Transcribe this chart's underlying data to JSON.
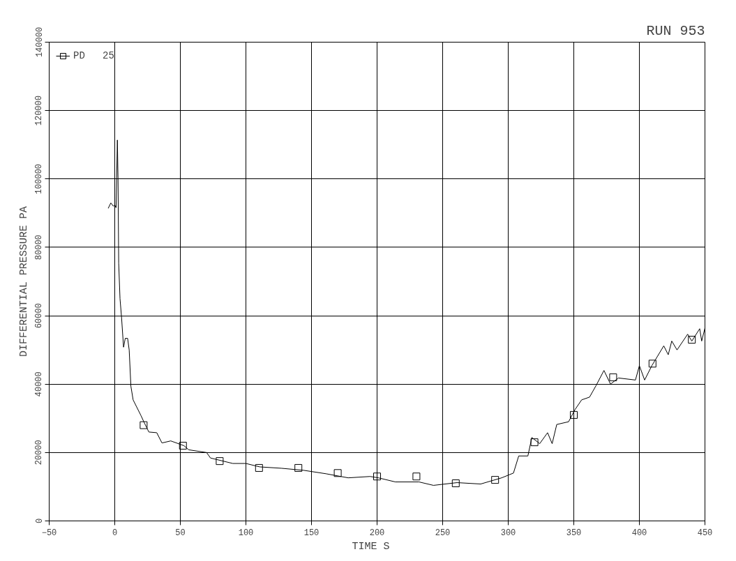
{
  "chart_data": {
    "type": "line",
    "title": "RUN 953",
    "xlabel": "TIME   S",
    "ylabel": "DIFFERENTIAL PRESSURE PA",
    "xlim": [
      -50,
      450
    ],
    "xticks": [
      -50,
      0,
      50,
      100,
      150,
      200,
      250,
      300,
      350,
      400,
      450
    ],
    "ylim": [
      0,
      140000
    ],
    "yticks": [
      0,
      20000,
      40000,
      60000,
      80000,
      100000,
      120000,
      140000
    ],
    "grid": true,
    "legend": "top left",
    "series": [
      {
        "name": "PD   25",
        "color": "#000000",
        "marker": "none",
        "x": [
          -5,
          -3,
          -1,
          0,
          1,
          2,
          2.5,
          3,
          4,
          5.2,
          6.7,
          8,
          9.8,
          11,
          12.3,
          14,
          20,
          22.4,
          26,
          32,
          36,
          42.7,
          52.8,
          56.4,
          70,
          73,
          90,
          100,
          110.6,
          127,
          144,
          161,
          178,
          194.7,
          201,
          214,
          232,
          243,
          261,
          279,
          295,
          304,
          308,
          315,
          318,
          324,
          330,
          333.5,
          337,
          346,
          351,
          356,
          362,
          367,
          373,
          378,
          384,
          397,
          400,
          404,
          409.5,
          418.6,
          422,
          424.7,
          428.7,
          436.8,
          440,
          446,
          447.5,
          450
        ],
        "values": [
          91400,
          93000,
          92000,
          92400,
          91600,
          111400,
          100000,
          75400,
          65000,
          59400,
          50800,
          53400,
          53400,
          50000,
          39400,
          35400,
          30800,
          28800,
          26000,
          25800,
          22800,
          23400,
          22000,
          20800,
          20000,
          18400,
          16800,
          16800,
          15800,
          15400,
          14800,
          13800,
          12600,
          13000,
          12600,
          11400,
          11400,
          10400,
          11200,
          10800,
          12600,
          14000,
          19000,
          19000,
          24400,
          22600,
          25800,
          22600,
          28200,
          29000,
          32600,
          35400,
          36200,
          39600,
          44000,
          40000,
          41800,
          41200,
          45400,
          41200,
          45400,
          51200,
          48600,
          52600,
          50000,
          54600,
          52600,
          56200,
          52600,
          56400
        ]
      },
      {
        "type": "scatter",
        "color": "#000000",
        "marker": "square",
        "x": [
          22,
          52,
          80,
          110,
          140,
          170,
          200,
          230,
          260,
          290,
          320,
          350,
          380,
          410,
          440
        ],
        "values": [
          28000,
          22000,
          17500,
          15500,
          15500,
          14000,
          13000,
          13000,
          11000,
          12000,
          23000,
          31000,
          42000,
          46000,
          53000
        ]
      }
    ]
  }
}
